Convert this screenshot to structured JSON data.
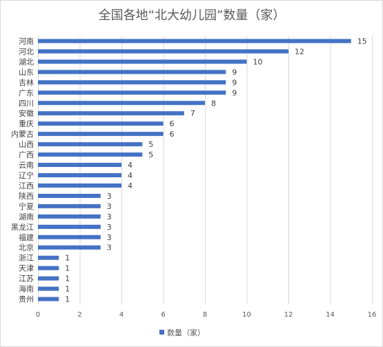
{
  "chart_data": {
    "type": "bar",
    "orientation": "horizontal",
    "title": "全国各地“北大幼儿园”数量（家）",
    "categories": [
      "河南",
      "河北",
      "湖北",
      "山东",
      "吉林",
      "广东",
      "四川",
      "安徽",
      "重庆",
      "内蒙古",
      "山西",
      "广西",
      "云南",
      "辽宁",
      "江西",
      "陕西",
      "宁夏",
      "湖南",
      "黑龙江",
      "福建",
      "北京",
      "浙江",
      "天津",
      "江苏",
      "海南",
      "贵州"
    ],
    "series": [
      {
        "name": "数量（家）",
        "values": [
          15,
          12,
          10,
          9,
          9,
          9,
          8,
          7,
          6,
          6,
          5,
          5,
          4,
          4,
          4,
          3,
          3,
          3,
          3,
          3,
          3,
          1,
          1,
          1,
          1,
          1
        ],
        "color": "#4472c4"
      }
    ],
    "xlim": [
      0,
      16
    ],
    "x_ticks": [
      0,
      2,
      4,
      6,
      8,
      10,
      12,
      14,
      16
    ],
    "grid": "vertical",
    "legend_position": "bottom",
    "data_labels": true
  }
}
